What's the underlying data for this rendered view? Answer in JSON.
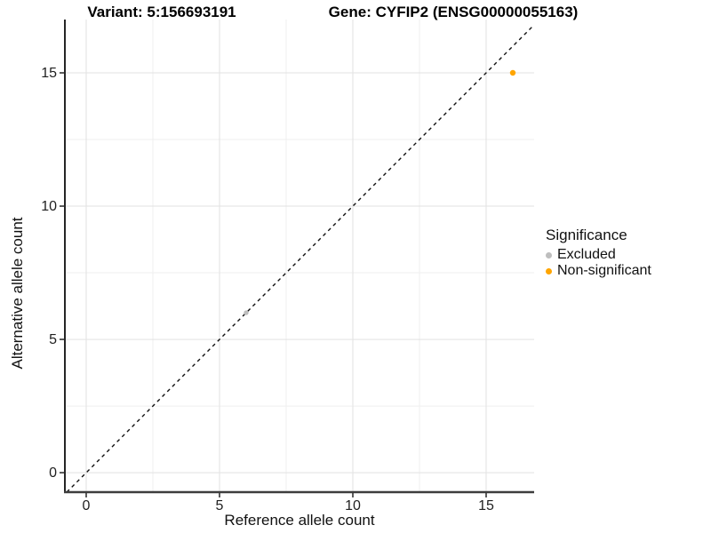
{
  "titles": {
    "variant": "Variant: 5:156693191",
    "gene": "Gene: CYFIP2 (ENSG00000055163)"
  },
  "chart_data": {
    "type": "scatter",
    "xlabel": "Reference allele count",
    "ylabel": "Alternative allele count",
    "xlim": [
      -0.8,
      16.8
    ],
    "ylim": [
      -0.73,
      17.0
    ],
    "x_ticks": [
      0,
      5,
      10,
      15
    ],
    "y_ticks": [
      0,
      5,
      10,
      15
    ],
    "x_minor_gridlines": [
      2.5,
      7.5,
      12.5
    ],
    "y_minor_gridlines": [
      2.5,
      7.5,
      12.5
    ],
    "grid": {
      "major_color": "#e2e2e2",
      "minor_color": "#efefef",
      "background": "#ffffff"
    },
    "axis_colors": {
      "line": "#3d3d3d",
      "tick": "#333333",
      "tick_label": "#1f1f1f"
    },
    "reference_line": {
      "slope": 1,
      "intercept": 0,
      "style": "dashed",
      "color": "#111111"
    },
    "series": [
      {
        "name": "Excluded",
        "color": "#bebebe",
        "radius": 2.7,
        "points": [
          {
            "x": 6,
            "y": 6
          }
        ]
      },
      {
        "name": "Non-significant",
        "color": "#ffa500",
        "radius": 3.2,
        "points": [
          {
            "x": 16,
            "y": 15
          }
        ]
      }
    ],
    "legend": {
      "title": "Significance",
      "position": "right",
      "entries": [
        {
          "label": "Excluded",
          "color": "#bebebe"
        },
        {
          "label": "Non-significant",
          "color": "#ffa500"
        }
      ]
    }
  }
}
